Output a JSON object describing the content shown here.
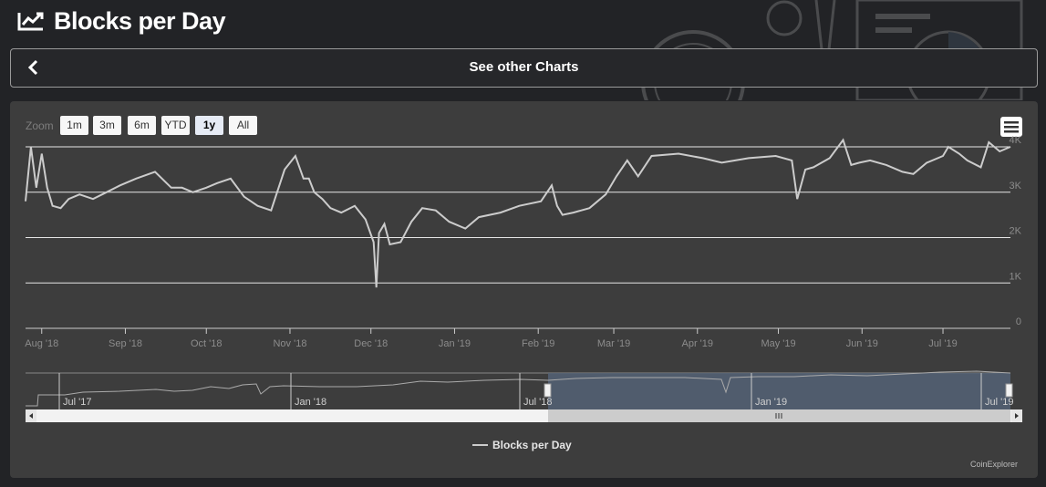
{
  "header": {
    "title": "Blocks per Day",
    "icon": "line-chart-icon"
  },
  "nav": {
    "label": "See other Charts",
    "back_icon": "chevron-left-icon"
  },
  "toolbar": {
    "zoom_label": "Zoom",
    "buttons": [
      {
        "label": "1m",
        "active": false
      },
      {
        "label": "3m",
        "active": false
      },
      {
        "label": "6m",
        "active": false
      },
      {
        "label": "YTD",
        "active": false
      },
      {
        "label": "1y",
        "active": true
      },
      {
        "label": "All",
        "active": false
      }
    ],
    "menu_icon": "hamburger-menu-icon"
  },
  "credits": "CoinExplorer",
  "colors": {
    "page_bg": "#222326",
    "panel_bg": "#3d3d3d",
    "series": "#cccccc",
    "selection": "#546176"
  },
  "chart_data": {
    "type": "line",
    "title": "",
    "legend": {
      "position": "bottom-center",
      "entries": [
        "Blocks per Day"
      ]
    },
    "xlabel": "",
    "ylabel": "",
    "ylim": [
      0,
      4000
    ],
    "yticks": [
      "0",
      "1K",
      "2K",
      "3K",
      "4K"
    ],
    "xlim": [
      "2018-07-26",
      "2019-07-26"
    ],
    "xticks": [
      "Aug '18",
      "Sep '18",
      "Oct '18",
      "Nov '18",
      "Dec '18",
      "Jan '19",
      "Feb '19",
      "Mar '19",
      "Apr '19",
      "May '19",
      "Jun '19",
      "Jul '19"
    ],
    "grid": true,
    "series": [
      {
        "name": "Blocks per Day",
        "x": [
          "2018-07-26",
          "2018-07-28",
          "2018-07-30",
          "2018-08-01",
          "2018-08-03",
          "2018-08-05",
          "2018-08-08",
          "2018-08-11",
          "2018-08-15",
          "2018-08-20",
          "2018-08-25",
          "2018-08-30",
          "2018-09-05",
          "2018-09-12",
          "2018-09-18",
          "2018-09-22",
          "2018-09-26",
          "2018-10-01",
          "2018-10-05",
          "2018-10-10",
          "2018-10-15",
          "2018-10-20",
          "2018-10-25",
          "2018-10-30",
          "2018-11-03",
          "2018-11-06",
          "2018-11-08",
          "2018-11-10",
          "2018-11-13",
          "2018-11-16",
          "2018-11-20",
          "2018-11-25",
          "2018-11-29",
          "2018-12-02",
          "2018-12-03",
          "2018-12-04",
          "2018-12-06",
          "2018-12-08",
          "2018-12-12",
          "2018-12-16",
          "2018-12-20",
          "2018-12-25",
          "2018-12-30",
          "2019-01-05",
          "2019-01-10",
          "2019-01-18",
          "2019-01-25",
          "2019-02-02",
          "2019-02-06",
          "2019-02-08",
          "2019-02-10",
          "2019-02-14",
          "2019-02-20",
          "2019-02-26",
          "2019-03-02",
          "2019-03-06",
          "2019-03-10",
          "2019-03-15",
          "2019-03-25",
          "2019-04-03",
          "2019-04-10",
          "2019-04-20",
          "2019-04-30",
          "2019-05-06",
          "2019-05-08",
          "2019-05-11",
          "2019-05-14",
          "2019-05-20",
          "2019-05-25",
          "2019-05-28",
          "2019-05-31",
          "2019-06-04",
          "2019-06-10",
          "2019-06-16",
          "2019-06-20",
          "2019-06-25",
          "2019-07-01",
          "2019-07-03",
          "2019-07-07",
          "2019-07-10",
          "2019-07-15",
          "2019-07-18",
          "2019-07-22",
          "2019-07-26"
        ],
        "values": [
          2800,
          4000,
          3100,
          3850,
          3100,
          2700,
          2650,
          2850,
          2950,
          2850,
          3000,
          3150,
          3300,
          3450,
          3100,
          3100,
          3000,
          3100,
          3200,
          3300,
          2900,
          2700,
          2600,
          3500,
          3800,
          3300,
          3300,
          3000,
          2850,
          2650,
          2550,
          2700,
          2400,
          1900,
          900,
          2100,
          2300,
          1850,
          1900,
          2350,
          2650,
          2600,
          2350,
          2200,
          2450,
          2550,
          2700,
          2800,
          3150,
          2700,
          2500,
          2550,
          2650,
          2950,
          3350,
          3700,
          3350,
          3800,
          3850,
          3750,
          3650,
          3750,
          3800,
          3700,
          2850,
          3500,
          3550,
          3750,
          4150,
          3600,
          3650,
          3700,
          3600,
          3450,
          3400,
          3650,
          3800,
          4000,
          3850,
          3700,
          3550,
          4100,
          3900,
          4000
        ]
      }
    ],
    "navigator": {
      "xticks": [
        "Jul '17",
        "Jan '18",
        "Jul '18",
        "Jan '19",
        "Jul '19"
      ],
      "selected_range": [
        "2018-07-26",
        "2019-07-26"
      ]
    }
  }
}
